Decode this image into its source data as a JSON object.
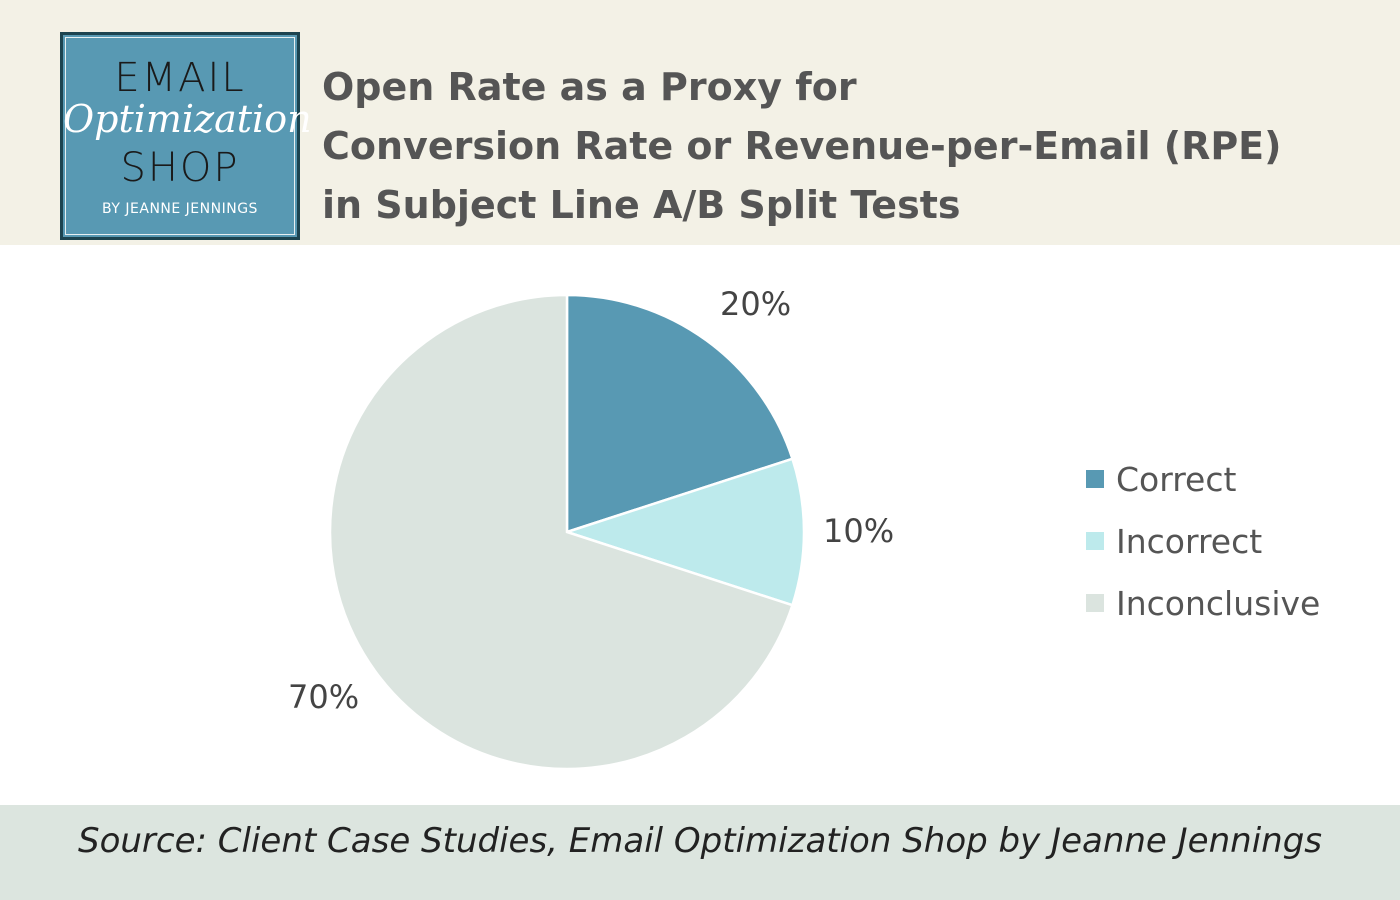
{
  "logo": {
    "line1": "EMAIL",
    "line2": "Optimization",
    "line3": "SHOP",
    "line4": "BY JEANNE JENNINGS"
  },
  "title_lines": [
    "Open Rate as a Proxy for",
    "Conversion Rate or Revenue-per-Email (RPE)",
    "in Subject Line A/B Split Tests"
  ],
  "chart_data": {
    "type": "pie",
    "title": "Open Rate as a Proxy for Conversion Rate or Revenue-per-Email (RPE) in Subject Line A/B Split Tests",
    "categories": [
      "Correct",
      "Incorrect",
      "Inconclusive"
    ],
    "values": [
      20,
      10,
      70
    ],
    "data_labels": [
      "20%",
      "10%",
      "70%"
    ],
    "colors": [
      "#5899b3",
      "#bdeaec",
      "#dbe4df"
    ],
    "legend": "right"
  },
  "source": "Source: Client Case Studies, Email Optimization Shop by Jeanne Jennings"
}
